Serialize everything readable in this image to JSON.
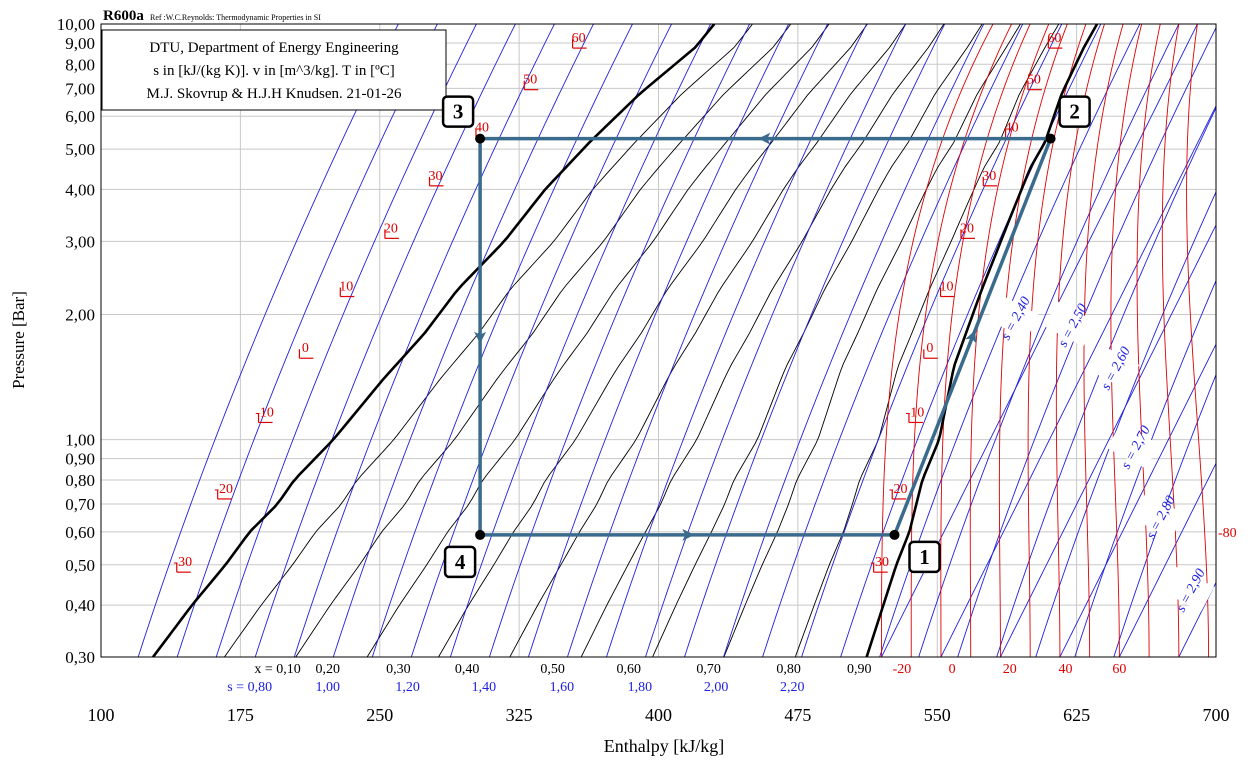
{
  "chart_data": {
    "type": "line",
    "title": "R600a",
    "subtitle": "Ref :W.C.Reynolds: Thermodynamic Properties in SI",
    "info_box": [
      "DTU, Department of Energy Engineering",
      "s in [kJ/(kg K)]. v in [m^3/kg]. T in [ºC]",
      "M.J. Skovrup & H.J.H Knudsen. 21-01-26"
    ],
    "xlabel": "Enthalpy [kJ/kg]",
    "ylabel": "Pressure [Bar]",
    "xlim": [
      100,
      700
    ],
    "ylim": [
      0.3,
      10
    ],
    "y_scale": "log",
    "x_ticks": [
      100,
      175,
      250,
      325,
      400,
      475,
      550,
      625,
      700
    ],
    "y_ticks": [
      {
        "v": 0.3,
        "label": "0,30"
      },
      {
        "v": 0.4,
        "label": "0,40"
      },
      {
        "v": 0.5,
        "label": "0,50"
      },
      {
        "v": 0.6,
        "label": "0,60"
      },
      {
        "v": 0.7,
        "label": "0,70"
      },
      {
        "v": 0.8,
        "label": "0,80"
      },
      {
        "v": 0.9,
        "label": "0,90"
      },
      {
        "v": 1.0,
        "label": "1,00"
      },
      {
        "v": 2.0,
        "label": "2,00"
      },
      {
        "v": 3.0,
        "label": "3,00"
      },
      {
        "v": 4.0,
        "label": "4,00"
      },
      {
        "v": 5.0,
        "label": "5,00"
      },
      {
        "v": 6.0,
        "label": "6,00"
      },
      {
        "v": 7.0,
        "label": "7,00"
      },
      {
        "v": 8.0,
        "label": "8,00"
      },
      {
        "v": 9.0,
        "label": "9,00"
      },
      {
        "v": 10.0,
        "label": "10,00"
      }
    ],
    "grid": true,
    "quality_labels": [
      "x = 0,10",
      "0,20",
      "0,30",
      "0,40",
      "0,50",
      "0,60",
      "0,70",
      "0,80",
      "0,90"
    ],
    "quality_label_h": [
      195,
      222,
      260,
      297,
      343,
      384,
      427,
      470,
      508
    ],
    "entropy_labels_bottom": [
      "s = 0,80",
      "1,00",
      "1,20",
      "1,40",
      "1,60",
      "1,80",
      "2,00",
      "2,20"
    ],
    "entropy_label_h": [
      180,
      222,
      265,
      306,
      348,
      390,
      431,
      472
    ],
    "superheat_temp_labels": [
      "-20",
      "0",
      "20",
      "40",
      "60"
    ],
    "superheat_temp_h": [
      531,
      558,
      589,
      619,
      648
    ],
    "entropy_labels_vapor": [
      "s = 2,40",
      "s = 2,50",
      "s = 2,60",
      "s = 2,70",
      "s = 2,80",
      "s = 2,90"
    ],
    "isotherm_label_right": "-80",
    "saturation_liquid": [
      [
        128,
        0.3
      ],
      [
        149,
        0.4
      ],
      [
        167,
        0.5
      ],
      [
        180,
        0.6
      ],
      [
        195,
        0.7
      ],
      [
        204,
        0.8
      ],
      [
        225,
        1.0
      ],
      [
        252,
        1.4
      ],
      [
        274,
        1.8
      ],
      [
        292,
        2.3
      ],
      [
        317,
        3.0
      ],
      [
        339,
        4.0
      ],
      [
        363,
        5.2
      ],
      [
        390,
        6.8
      ],
      [
        420,
        8.8
      ],
      [
        430,
        10
      ]
    ],
    "saturation_vapor": [
      [
        512,
        0.3
      ],
      [
        521,
        0.4
      ],
      [
        528,
        0.5
      ],
      [
        535,
        0.6
      ],
      [
        542,
        0.8
      ],
      [
        551,
        1.0
      ],
      [
        559,
        1.5
      ],
      [
        574,
        2.3
      ],
      [
        589,
        3.4
      ],
      [
        600,
        4.5
      ],
      [
        608,
        5.2
      ],
      [
        617,
        6.8
      ],
      [
        629,
        8.8
      ],
      [
        636,
        10
      ]
    ],
    "sat_temp_labels": [
      {
        "t": "-30",
        "h": 144,
        "p": 0.48
      },
      {
        "t": "-20",
        "h": 166,
        "p": 0.72
      },
      {
        "t": "-10",
        "h": 188,
        "p": 1.1
      },
      {
        "t": "0",
        "h": 210,
        "p": 1.57
      },
      {
        "t": "10",
        "h": 232,
        "p": 2.21
      },
      {
        "t": "20",
        "h": 256,
        "p": 3.05
      },
      {
        "t": "30",
        "h": 280,
        "p": 4.08
      },
      {
        "t": "40",
        "h": 305,
        "p": 5.33
      },
      {
        "t": "50",
        "h": 331,
        "p": 6.95
      },
      {
        "t": "60",
        "h": 357,
        "p": 8.75
      },
      {
        "t": "-30",
        "h": 519,
        "p": 0.48
      },
      {
        "t": "-20",
        "h": 529,
        "p": 0.72
      },
      {
        "t": "-10",
        "h": 538,
        "p": 1.1
      },
      {
        "t": "0",
        "h": 546,
        "p": 1.57
      },
      {
        "t": "10",
        "h": 555,
        "p": 2.21
      },
      {
        "t": "20",
        "h": 566,
        "p": 3.05
      },
      {
        "t": "30",
        "h": 578,
        "p": 4.08
      },
      {
        "t": "40",
        "h": 590,
        "p": 5.33
      },
      {
        "t": "50",
        "h": 602,
        "p": 6.95
      },
      {
        "t": "60",
        "h": 613,
        "p": 8.75
      }
    ],
    "series": [
      {
        "name": "cycle",
        "points": [
          {
            "id": "1",
            "h": 527,
            "p": 0.59
          },
          {
            "id": "2",
            "h": 611,
            "p": 5.3
          },
          {
            "id": "3",
            "h": 304,
            "p": 5.3
          },
          {
            "id": "4",
            "h": 304,
            "p": 0.59
          }
        ]
      }
    ],
    "colors": {
      "cycle": "#3a6b8c",
      "isotherm": "#e00000",
      "isentrope": "#2020e0",
      "quality": "#000000",
      "grid": "#c8c8c8"
    }
  }
}
